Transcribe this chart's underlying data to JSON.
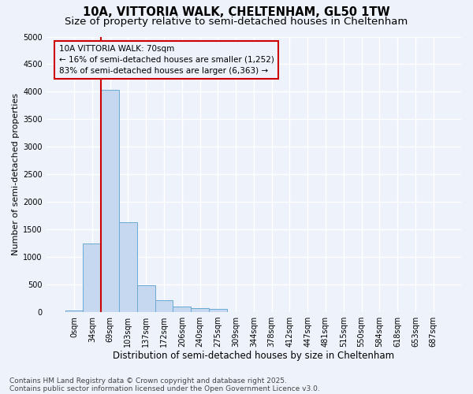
{
  "title1": "10A, VITTORIA WALK, CHELTENHAM, GL50 1TW",
  "title2": "Size of property relative to semi-detached houses in Cheltenham",
  "xlabel": "Distribution of semi-detached houses by size in Cheltenham",
  "ylabel": "Number of semi-detached properties",
  "bar_labels": [
    "0sqm",
    "34sqm",
    "69sqm",
    "103sqm",
    "137sqm",
    "172sqm",
    "206sqm",
    "240sqm",
    "275sqm",
    "309sqm",
    "344sqm",
    "378sqm",
    "412sqm",
    "447sqm",
    "481sqm",
    "515sqm",
    "550sqm",
    "584sqm",
    "618sqm",
    "653sqm",
    "687sqm"
  ],
  "bar_values": [
    30,
    1240,
    4040,
    1630,
    480,
    210,
    105,
    75,
    55,
    0,
    0,
    0,
    0,
    0,
    0,
    0,
    0,
    0,
    0,
    0,
    0
  ],
  "bar_color": "#c5d8f0",
  "bar_edge_color": "#6aaad4",
  "vline_color": "#cc0000",
  "annotation_text": "10A VITTORIA WALK: 70sqm\n← 16% of semi-detached houses are smaller (1,252)\n83% of semi-detached houses are larger (6,363) →",
  "annotation_box_edge_color": "#cc0000",
  "ylim_max": 5000,
  "yticks": [
    0,
    500,
    1000,
    1500,
    2000,
    2500,
    3000,
    3500,
    4000,
    4500,
    5000
  ],
  "background_color": "#eef2fb",
  "grid_color": "#ffffff",
  "footer1": "Contains HM Land Registry data © Crown copyright and database right 2025.",
  "footer2": "Contains public sector information licensed under the Open Government Licence v3.0.",
  "title1_fontsize": 10.5,
  "title2_fontsize": 9.5,
  "xlabel_fontsize": 8.5,
  "ylabel_fontsize": 8,
  "tick_fontsize": 7,
  "footer_fontsize": 6.5,
  "annotation_fontsize": 7.5,
  "vline_x_idx": 2
}
